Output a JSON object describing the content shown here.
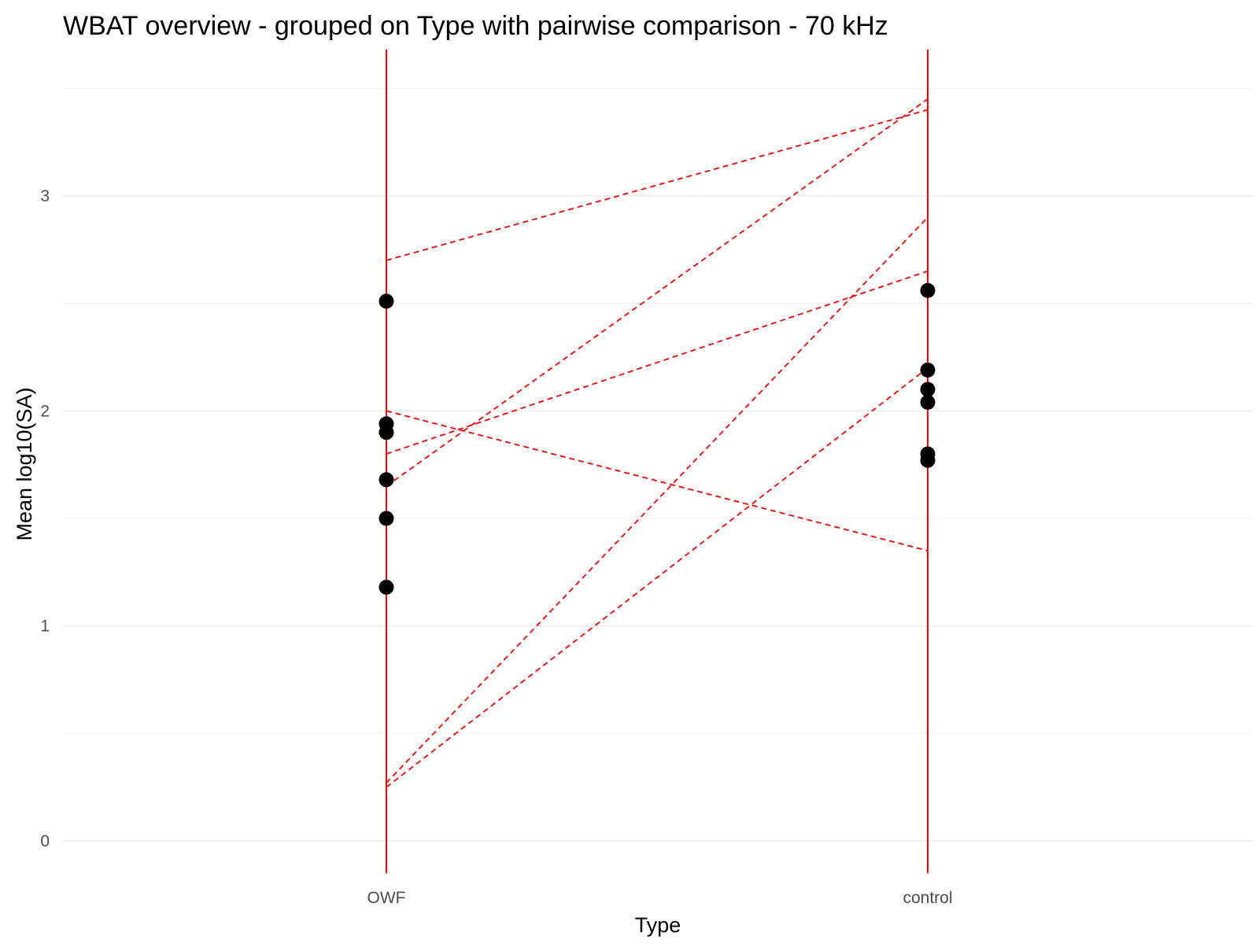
{
  "chart_data": {
    "type": "scatter",
    "title": "WBAT overview - grouped on Type with pairwise comparison - 70 kHz",
    "xlabel": "Type",
    "ylabel": "Mean log10(SA)",
    "categories": [
      "OWF",
      "control"
    ],
    "yticks": [
      "0",
      "1",
      "2",
      "3"
    ],
    "ylim": [
      -0.1,
      3.7
    ],
    "grid": true,
    "colors": {
      "points": "#000000",
      "lines": "#ff0000",
      "grid": "#ebebeb",
      "tick_labels": "#4d4d4d"
    },
    "vertical_lines": [
      {
        "category": "OWF",
        "y_from": -0.15,
        "y_to": 3.68
      },
      {
        "category": "control",
        "y_from": -0.15,
        "y_to": 3.68
      }
    ],
    "points": [
      {
        "category": "OWF",
        "y": 2.51
      },
      {
        "category": "OWF",
        "y": 1.94
      },
      {
        "category": "OWF",
        "y": 1.9
      },
      {
        "category": "OWF",
        "y": 1.68
      },
      {
        "category": "OWF",
        "y": 1.5
      },
      {
        "category": "OWF",
        "y": 1.18
      },
      {
        "category": "control",
        "y": 2.56
      },
      {
        "category": "control",
        "y": 2.19
      },
      {
        "category": "control",
        "y": 2.1
      },
      {
        "category": "control",
        "y": 2.04
      },
      {
        "category": "control",
        "y": 1.8
      },
      {
        "category": "control",
        "y": 1.77
      }
    ],
    "pairwise_lines": [
      {
        "owf": 2.7,
        "control": 3.4
      },
      {
        "owf": 1.65,
        "control": 3.45
      },
      {
        "owf": 0.27,
        "control": 2.9
      },
      {
        "owf": 1.8,
        "control": 2.65
      },
      {
        "owf": 2.0,
        "control": 1.35
      },
      {
        "owf": 0.25,
        "control": 2.2
      }
    ]
  }
}
